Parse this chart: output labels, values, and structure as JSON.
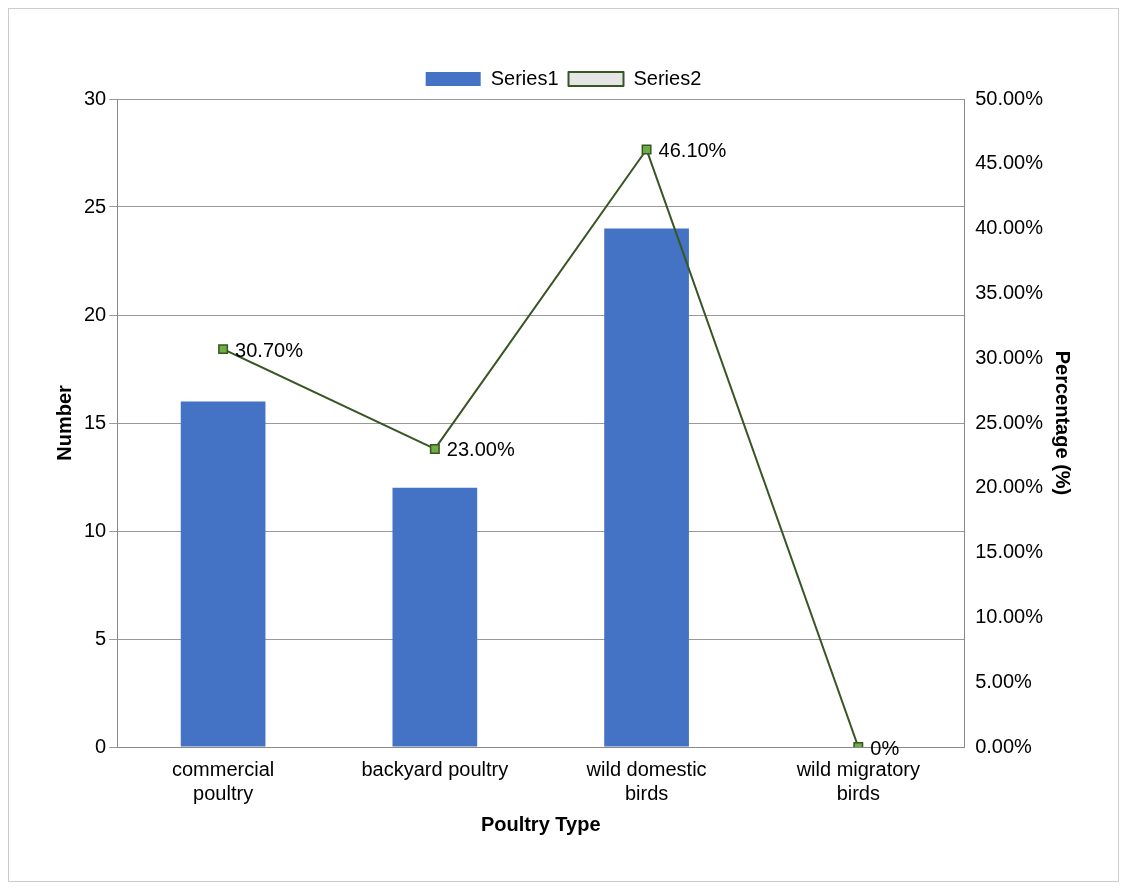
{
  "chart_data": {
    "type": "bar",
    "xlabel": "Poultry Type",
    "ylabel": "Number",
    "y2label": "Percentage (%)",
    "categories": [
      "commercial poultry",
      "backyard poultry",
      "wild domestic birds",
      "wild migratory birds"
    ],
    "series": [
      {
        "name": "Series1",
        "color": "#4472c4",
        "values": [
          16,
          12,
          24,
          0
        ]
      },
      {
        "name": "Series2",
        "type": "line",
        "axis": "y2",
        "color": "#375623",
        "marker": "square",
        "values": [
          30.7,
          23.0,
          46.1,
          0
        ],
        "value_labels": [
          "30.70%",
          "23.00%",
          "46.10%",
          "0%"
        ]
      }
    ],
    "ylim": [
      0,
      30
    ],
    "yticks": [
      0,
      5,
      10,
      15,
      20,
      25,
      30
    ],
    "y2lim": [
      0,
      50
    ],
    "y2ticks": [
      {
        "value": 0,
        "label": "0.00%"
      },
      {
        "value": 5,
        "label": "5.00%"
      },
      {
        "value": 10,
        "label": "10.00%"
      },
      {
        "value": 15,
        "label": "15.00%"
      },
      {
        "value": 20,
        "label": "20.00%"
      },
      {
        "value": 25,
        "label": "25.00%"
      },
      {
        "value": 30,
        "label": "30.00%"
      },
      {
        "value": 35,
        "label": "35.00%"
      },
      {
        "value": 40,
        "label": "40.00%"
      },
      {
        "value": 45,
        "label": "45.00%"
      },
      {
        "value": 50,
        "label": "50.00%"
      }
    ],
    "grid": "y",
    "legend": "top"
  }
}
